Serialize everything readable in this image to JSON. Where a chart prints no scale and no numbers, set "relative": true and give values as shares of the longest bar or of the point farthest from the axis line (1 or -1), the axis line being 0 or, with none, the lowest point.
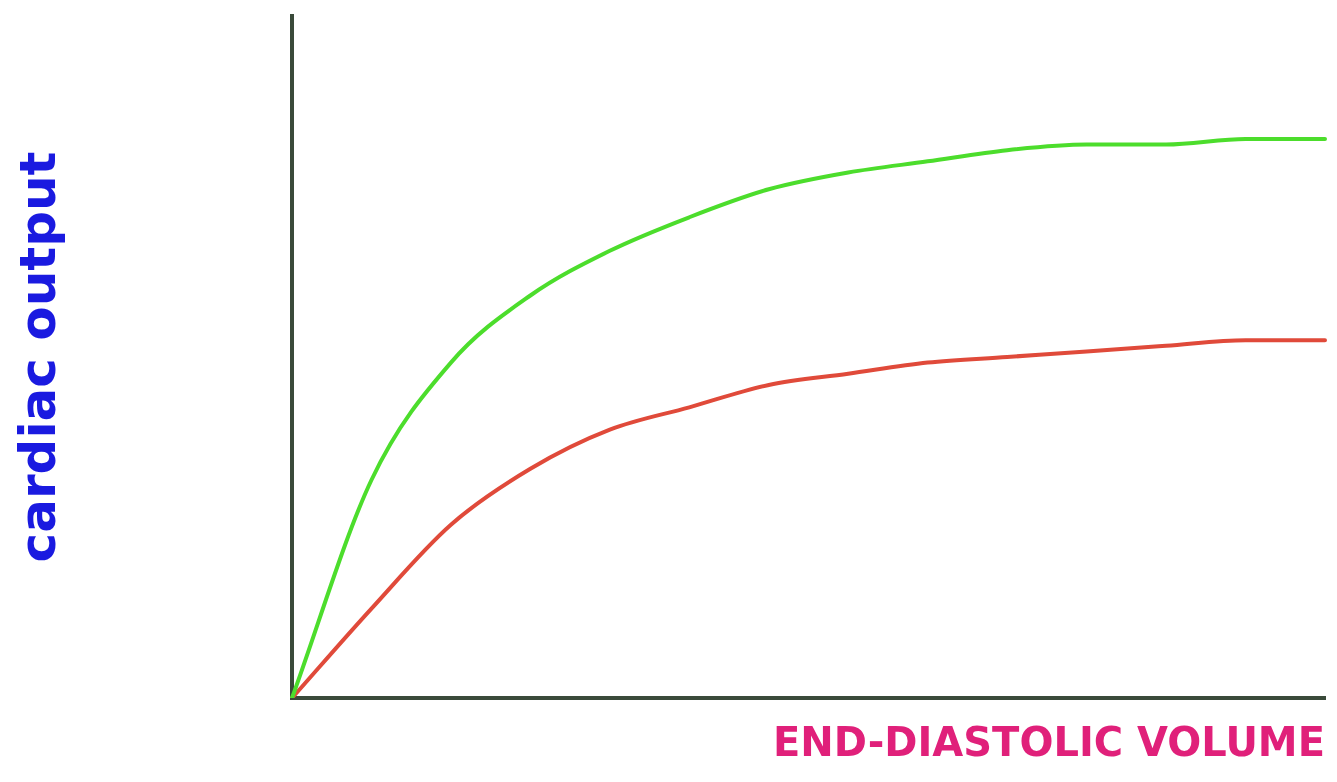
{
  "chart_data": {
    "type": "line",
    "relative": true,
    "xlabel": "END-DIASTOLIC VOLUME",
    "ylabel": "cardiac output",
    "categories": [
      null,
      null,
      null,
      null,
      null,
      null,
      null,
      null,
      null,
      null,
      null,
      null,
      null,
      null
    ],
    "grid": false,
    "legend": false,
    "marker": "none",
    "line_style": "solid",
    "series": [
      {
        "color": "#4cdd2c",
        "values": [
          0,
          0.39,
          0.6,
          0.72,
          0.8,
          0.86,
          0.91,
          0.94,
          0.96,
          0.98,
          0.99,
          0.99,
          1,
          1
        ]
      },
      {
        "color": "#e04a3a",
        "values": [
          0,
          0.16,
          0.31,
          0.41,
          0.48,
          0.52,
          0.56,
          0.58,
          0.6,
          0.61,
          0.62,
          0.63,
          0.64,
          0.64
        ]
      }
    ]
  }
}
